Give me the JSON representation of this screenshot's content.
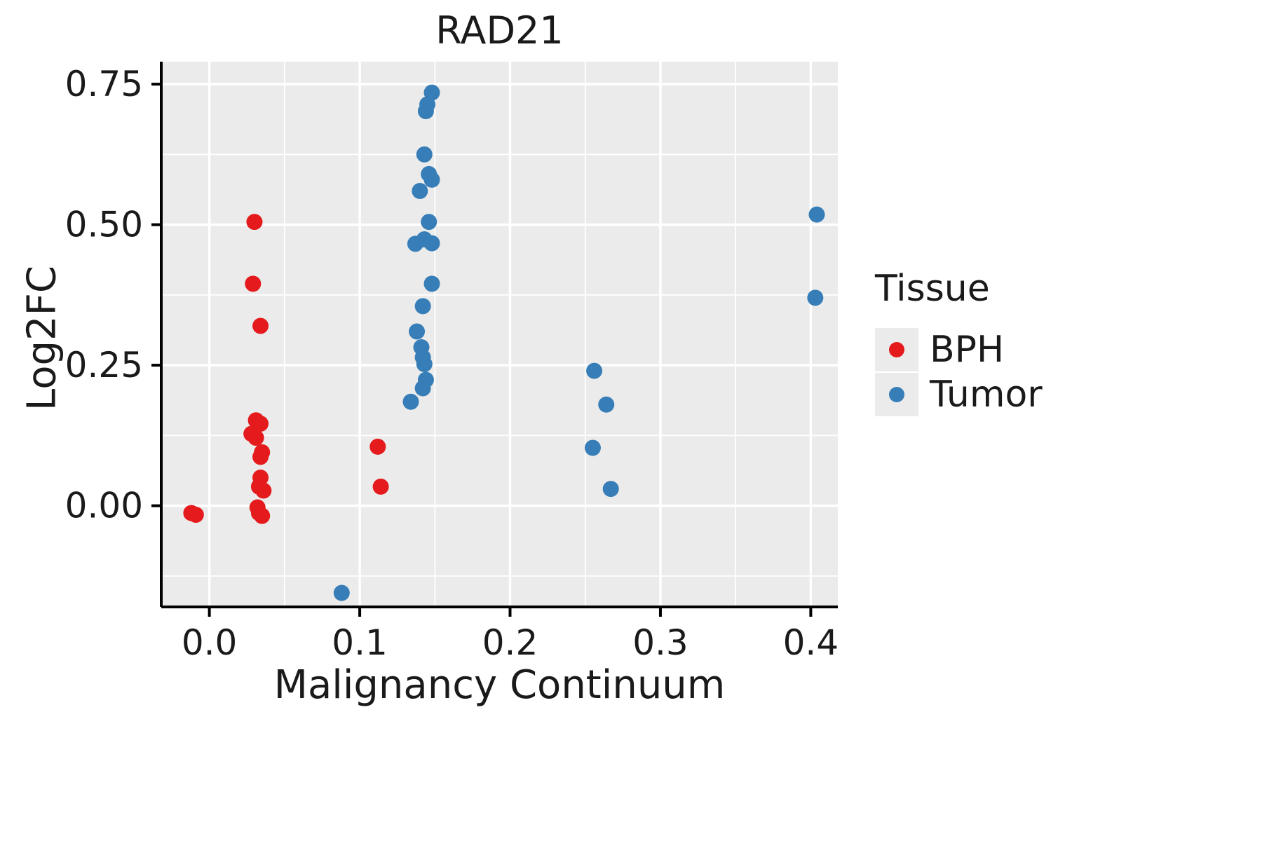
{
  "chart_data": {
    "type": "scatter",
    "title": "RAD21",
    "xlabel": "Malignancy Continuum",
    "ylabel": "Log2FC",
    "legend_title": "Tissue",
    "legend_position": "right",
    "grid": true,
    "panel_bg": "#EBEBEB",
    "grid_color": "#FFFFFF",
    "axis_color": "#000000",
    "xlim": [
      -0.032,
      0.418
    ],
    "ylim": [
      -0.18,
      0.79
    ],
    "x_ticks": [
      0.0,
      0.1,
      0.2,
      0.3,
      0.4
    ],
    "x_tick_labels": [
      "0.0",
      "0.1",
      "0.2",
      "0.3",
      "0.4"
    ],
    "y_ticks": [
      0.0,
      0.25,
      0.5,
      0.75
    ],
    "y_tick_labels": [
      "0.00",
      "0.25",
      "0.50",
      "0.75"
    ],
    "x_minor_ticks": [
      0.05,
      0.15,
      0.25,
      0.35
    ],
    "y_minor_ticks": [
      -0.125,
      0.125,
      0.375,
      0.625
    ],
    "point_radius": 11.5,
    "series": [
      {
        "name": "BPH",
        "color": "#E41A1C",
        "points": [
          [
            -0.012,
            -0.013
          ],
          [
            -0.009,
            -0.016
          ],
          [
            0.03,
            0.505
          ],
          [
            0.029,
            0.395
          ],
          [
            0.034,
            0.32
          ],
          [
            0.031,
            0.152
          ],
          [
            0.034,
            0.146
          ],
          [
            0.028,
            0.128
          ],
          [
            0.031,
            0.121
          ],
          [
            0.035,
            0.095
          ],
          [
            0.034,
            0.087
          ],
          [
            0.034,
            0.05
          ],
          [
            0.033,
            0.034
          ],
          [
            0.036,
            0.027
          ],
          [
            0.032,
            -0.003
          ],
          [
            0.033,
            -0.013
          ],
          [
            0.035,
            -0.018
          ],
          [
            0.112,
            0.105
          ],
          [
            0.114,
            0.034
          ]
        ]
      },
      {
        "name": "Tumor",
        "color": "#377EB8",
        "points": [
          [
            0.088,
            -0.155
          ],
          [
            0.148,
            0.735
          ],
          [
            0.145,
            0.714
          ],
          [
            0.144,
            0.702
          ],
          [
            0.143,
            0.625
          ],
          [
            0.146,
            0.59
          ],
          [
            0.148,
            0.58
          ],
          [
            0.14,
            0.56
          ],
          [
            0.146,
            0.505
          ],
          [
            0.143,
            0.474
          ],
          [
            0.137,
            0.466
          ],
          [
            0.148,
            0.467
          ],
          [
            0.148,
            0.395
          ],
          [
            0.142,
            0.355
          ],
          [
            0.138,
            0.31
          ],
          [
            0.141,
            0.282
          ],
          [
            0.142,
            0.264
          ],
          [
            0.143,
            0.252
          ],
          [
            0.144,
            0.224
          ],
          [
            0.142,
            0.209
          ],
          [
            0.134,
            0.185
          ],
          [
            0.256,
            0.24
          ],
          [
            0.264,
            0.18
          ],
          [
            0.255,
            0.103
          ],
          [
            0.267,
            0.03
          ],
          [
            0.404,
            0.518
          ],
          [
            0.403,
            0.37
          ]
        ]
      }
    ]
  }
}
